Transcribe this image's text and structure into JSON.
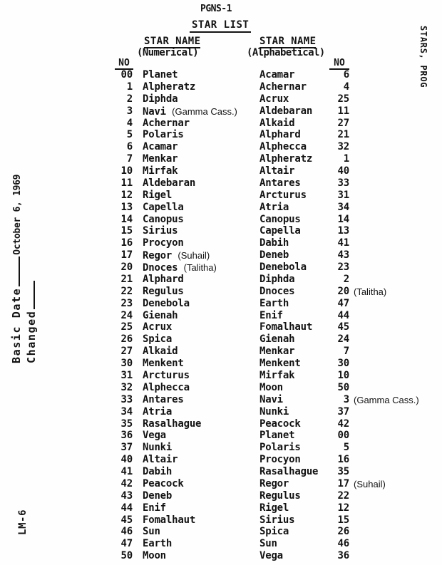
{
  "header": {
    "doc_title": "PGNS-1",
    "list_title": "STAR LIST",
    "numerical_col": {
      "title": "STAR NAME",
      "subtitle": "(Numerical)",
      "no_label": "NO"
    },
    "alphabetical_col": {
      "title": "STAR NAME",
      "subtitle": "(Alphabetical)",
      "no_label": "NO"
    }
  },
  "margins": {
    "basic_date_label": "Basic Date",
    "basic_date_value": "October 6, 1969",
    "changed_label": "Changed",
    "vehicle_label": "LM-6",
    "right_tab_label": "STARS, PROG"
  },
  "star_table": {
    "numerical": [
      {
        "no": "00",
        "name": "Planet",
        "note": ""
      },
      {
        "no": "1",
        "name": "Alpheratz",
        "note": ""
      },
      {
        "no": "2",
        "name": "Diphda",
        "note": ""
      },
      {
        "no": "3",
        "name": "Navi",
        "note": "(Gamma Cass.)"
      },
      {
        "no": "4",
        "name": "Achernar",
        "note": ""
      },
      {
        "no": "5",
        "name": "Polaris",
        "note": ""
      },
      {
        "no": "6",
        "name": "Acamar",
        "note": ""
      },
      {
        "no": "7",
        "name": "Menkar",
        "note": ""
      },
      {
        "no": "10",
        "name": "Mirfak",
        "note": ""
      },
      {
        "no": "11",
        "name": "Aldebaran",
        "note": ""
      },
      {
        "no": "12",
        "name": "Rigel",
        "note": ""
      },
      {
        "no": "13",
        "name": "Capella",
        "note": ""
      },
      {
        "no": "14",
        "name": "Canopus",
        "note": ""
      },
      {
        "no": "15",
        "name": "Sirius",
        "note": ""
      },
      {
        "no": "16",
        "name": "Procyon",
        "note": ""
      },
      {
        "no": "17",
        "name": "Regor",
        "note": "(Suhail)"
      },
      {
        "no": "20",
        "name": "Dnoces",
        "note": "(Talitha)"
      },
      {
        "no": "21",
        "name": "Alphard",
        "note": ""
      },
      {
        "no": "22",
        "name": "Regulus",
        "note": ""
      },
      {
        "no": "23",
        "name": "Denebola",
        "note": ""
      },
      {
        "no": "24",
        "name": "Gienah",
        "note": ""
      },
      {
        "no": "25",
        "name": "Acrux",
        "note": ""
      },
      {
        "no": "26",
        "name": "Spica",
        "note": ""
      },
      {
        "no": "27",
        "name": "Alkaid",
        "note": ""
      },
      {
        "no": "30",
        "name": "Menkent",
        "note": ""
      },
      {
        "no": "31",
        "name": "Arcturus",
        "note": ""
      },
      {
        "no": "32",
        "name": "Alphecca",
        "note": ""
      },
      {
        "no": "33",
        "name": "Antares",
        "note": ""
      },
      {
        "no": "34",
        "name": "Atria",
        "note": ""
      },
      {
        "no": "35",
        "name": "Rasalhague",
        "note": ""
      },
      {
        "no": "36",
        "name": "Vega",
        "note": ""
      },
      {
        "no": "37",
        "name": "Nunki",
        "note": ""
      },
      {
        "no": "40",
        "name": "Altair",
        "note": ""
      },
      {
        "no": "41",
        "name": "Dabih",
        "note": ""
      },
      {
        "no": "42",
        "name": "Peacock",
        "note": ""
      },
      {
        "no": "43",
        "name": "Deneb",
        "note": ""
      },
      {
        "no": "44",
        "name": "Enif",
        "note": ""
      },
      {
        "no": "45",
        "name": "Fomalhaut",
        "note": ""
      },
      {
        "no": "46",
        "name": "Sun",
        "note": ""
      },
      {
        "no": "47",
        "name": "Earth",
        "note": ""
      },
      {
        "no": "50",
        "name": "Moon",
        "note": ""
      }
    ],
    "alphabetical": [
      {
        "name": "Acamar",
        "no": "6",
        "note": ""
      },
      {
        "name": "Achernar",
        "no": "4",
        "note": ""
      },
      {
        "name": "Acrux",
        "no": "25",
        "note": ""
      },
      {
        "name": "Aldebaran",
        "no": "11",
        "note": ""
      },
      {
        "name": "Alkaid",
        "no": "27",
        "note": ""
      },
      {
        "name": "Alphard",
        "no": "21",
        "note": ""
      },
      {
        "name": "Alphecca",
        "no": "32",
        "note": ""
      },
      {
        "name": "Alpheratz",
        "no": "1",
        "note": ""
      },
      {
        "name": "Altair",
        "no": "40",
        "note": ""
      },
      {
        "name": "Antares",
        "no": "33",
        "note": ""
      },
      {
        "name": "Arcturus",
        "no": "31",
        "note": ""
      },
      {
        "name": "Atria",
        "no": "34",
        "note": ""
      },
      {
        "name": "Canopus",
        "no": "14",
        "note": ""
      },
      {
        "name": "Capella",
        "no": "13",
        "note": ""
      },
      {
        "name": "Dabih",
        "no": "41",
        "note": ""
      },
      {
        "name": "Deneb",
        "no": "43",
        "note": ""
      },
      {
        "name": "Denebola",
        "no": "23",
        "note": ""
      },
      {
        "name": "Diphda",
        "no": "2",
        "note": ""
      },
      {
        "name": "Dnoces",
        "no": "20",
        "note": "(Talitha)"
      },
      {
        "name": "Earth",
        "no": "47",
        "note": ""
      },
      {
        "name": "Enif",
        "no": "44",
        "note": ""
      },
      {
        "name": "Fomalhaut",
        "no": "45",
        "note": ""
      },
      {
        "name": "Gienah",
        "no": "24",
        "note": ""
      },
      {
        "name": "Menkar",
        "no": "7",
        "note": ""
      },
      {
        "name": "Menkent",
        "no": "30",
        "note": ""
      },
      {
        "name": "Mirfak",
        "no": "10",
        "note": ""
      },
      {
        "name": "Moon",
        "no": "50",
        "note": ""
      },
      {
        "name": "Navi",
        "no": "3",
        "note": "(Gamma Cass.)"
      },
      {
        "name": "Nunki",
        "no": "37",
        "note": ""
      },
      {
        "name": "Peacock",
        "no": "42",
        "note": ""
      },
      {
        "name": "Planet",
        "no": "00",
        "note": ""
      },
      {
        "name": "Polaris",
        "no": "5",
        "note": ""
      },
      {
        "name": "Procyon",
        "no": "16",
        "note": ""
      },
      {
        "name": "Rasalhague",
        "no": "35",
        "note": ""
      },
      {
        "name": "Regor",
        "no": "17",
        "note": "(Suhail)"
      },
      {
        "name": "Regulus",
        "no": "22",
        "note": ""
      },
      {
        "name": "Rigel",
        "no": "12",
        "note": ""
      },
      {
        "name": "Sirius",
        "no": "15",
        "note": ""
      },
      {
        "name": "Spica",
        "no": "26",
        "note": ""
      },
      {
        "name": "Sun",
        "no": "46",
        "note": ""
      },
      {
        "name": "Vega",
        "no": "36",
        "note": ""
      }
    ]
  }
}
